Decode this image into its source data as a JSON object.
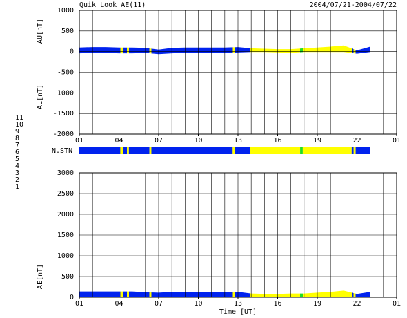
{
  "title": "Quik Look AE(11)",
  "date_range": "2004/07/21-2004/07/22",
  "station_legend": {
    "stations": [
      11,
      10,
      9,
      8,
      7,
      6,
      5,
      4,
      3,
      2,
      1
    ],
    "colors": [
      "#22d8ff",
      "#ff22ff",
      "#0022ee",
      "#ffff00",
      "#22dd22",
      "#ff0000",
      "#e8e8e8",
      "#aaaaaa",
      "#00c8c8",
      "#9900cc",
      "#3344ff"
    ]
  },
  "station_strip": {
    "label": "N.STN",
    "segments": [
      {
        "start": 0,
        "end": 3.1,
        "stations": 9
      },
      {
        "start": 3.1,
        "end": 3.3,
        "stations": 8
      },
      {
        "start": 3.3,
        "end": 3.6,
        "stations": 9
      },
      {
        "start": 3.6,
        "end": 3.75,
        "stations": 8
      },
      {
        "start": 3.75,
        "end": 5.3,
        "stations": 9
      },
      {
        "start": 5.3,
        "end": 5.45,
        "stations": 8
      },
      {
        "start": 5.45,
        "end": 11.6,
        "stations": 9
      },
      {
        "start": 11.6,
        "end": 11.75,
        "stations": 8
      },
      {
        "start": 11.75,
        "end": 12.9,
        "stations": 9
      },
      {
        "start": 12.9,
        "end": 16.7,
        "stations": 8
      },
      {
        "start": 16.7,
        "end": 16.9,
        "stations": 7
      },
      {
        "start": 16.9,
        "end": 20.6,
        "stations": 8
      },
      {
        "start": 20.6,
        "end": 20.75,
        "stations": 9
      },
      {
        "start": 20.75,
        "end": 20.9,
        "stations": 8
      },
      {
        "start": 20.9,
        "end": 22,
        "stations": 9
      }
    ]
  },
  "chart_data": [
    {
      "type": "area",
      "ylabels": [
        "AU[nT]",
        "AL[nT]"
      ],
      "x": [
        0,
        1,
        2,
        3,
        4,
        5,
        6,
        7,
        8,
        9,
        10,
        11,
        12,
        13,
        14,
        15,
        16,
        17,
        18,
        19,
        20,
        21,
        22
      ],
      "series": [
        {
          "name": "AU",
          "values": [
            100,
            110,
            110,
            100,
            100,
            90,
            50,
            90,
            100,
            100,
            100,
            100,
            110,
            80,
            70,
            60,
            60,
            80,
            100,
            120,
            150,
            30,
            120
          ]
        },
        {
          "name": "AL",
          "values": [
            -40,
            -30,
            -30,
            -40,
            -40,
            -30,
            -60,
            -40,
            -30,
            -30,
            -30,
            -30,
            -20,
            -10,
            -10,
            -20,
            -30,
            -10,
            -10,
            -10,
            -10,
            -50,
            -10
          ]
        }
      ],
      "xlim": [
        0,
        24
      ],
      "xticks": [
        {
          "value": 0,
          "label": "01"
        },
        {
          "value": 3,
          "label": "04"
        },
        {
          "value": 6,
          "label": "07"
        },
        {
          "value": 9,
          "label": "10"
        },
        {
          "value": 12,
          "label": "13"
        },
        {
          "value": 15,
          "label": "16"
        },
        {
          "value": 18,
          "label": "19"
        },
        {
          "value": 21,
          "label": "22"
        },
        {
          "value": 24,
          "label": "01"
        }
      ],
      "ylim": [
        -2000,
        1000
      ],
      "yticks": [
        -2000,
        -1500,
        -1000,
        -500,
        0,
        500,
        1000
      ],
      "grid": true
    },
    {
      "type": "area",
      "ylabel": "AE[nT]",
      "xlabel": "Time [UT]",
      "x": [
        0,
        1,
        2,
        3,
        4,
        5,
        6,
        7,
        8,
        9,
        10,
        11,
        12,
        13,
        14,
        15,
        16,
        17,
        18,
        19,
        20,
        21,
        22
      ],
      "series": [
        {
          "name": "AE",
          "values": [
            140,
            140,
            140,
            140,
            140,
            120,
            110,
            130,
            130,
            130,
            130,
            130,
            130,
            90,
            80,
            80,
            90,
            90,
            110,
            130,
            160,
            80,
            130
          ]
        }
      ],
      "xlim": [
        0,
        24
      ],
      "xticks": [
        {
          "value": 0,
          "label": "01"
        },
        {
          "value": 3,
          "label": "04"
        },
        {
          "value": 6,
          "label": "07"
        },
        {
          "value": 9,
          "label": "10"
        },
        {
          "value": 12,
          "label": "13"
        },
        {
          "value": 15,
          "label": "16"
        },
        {
          "value": 18,
          "label": "19"
        },
        {
          "value": 21,
          "label": "22"
        },
        {
          "value": 24,
          "label": "01"
        }
      ],
      "ylim": [
        0,
        3000
      ],
      "yticks": [
        0,
        500,
        1000,
        1500,
        2000,
        2500,
        3000
      ],
      "grid": true
    }
  ]
}
